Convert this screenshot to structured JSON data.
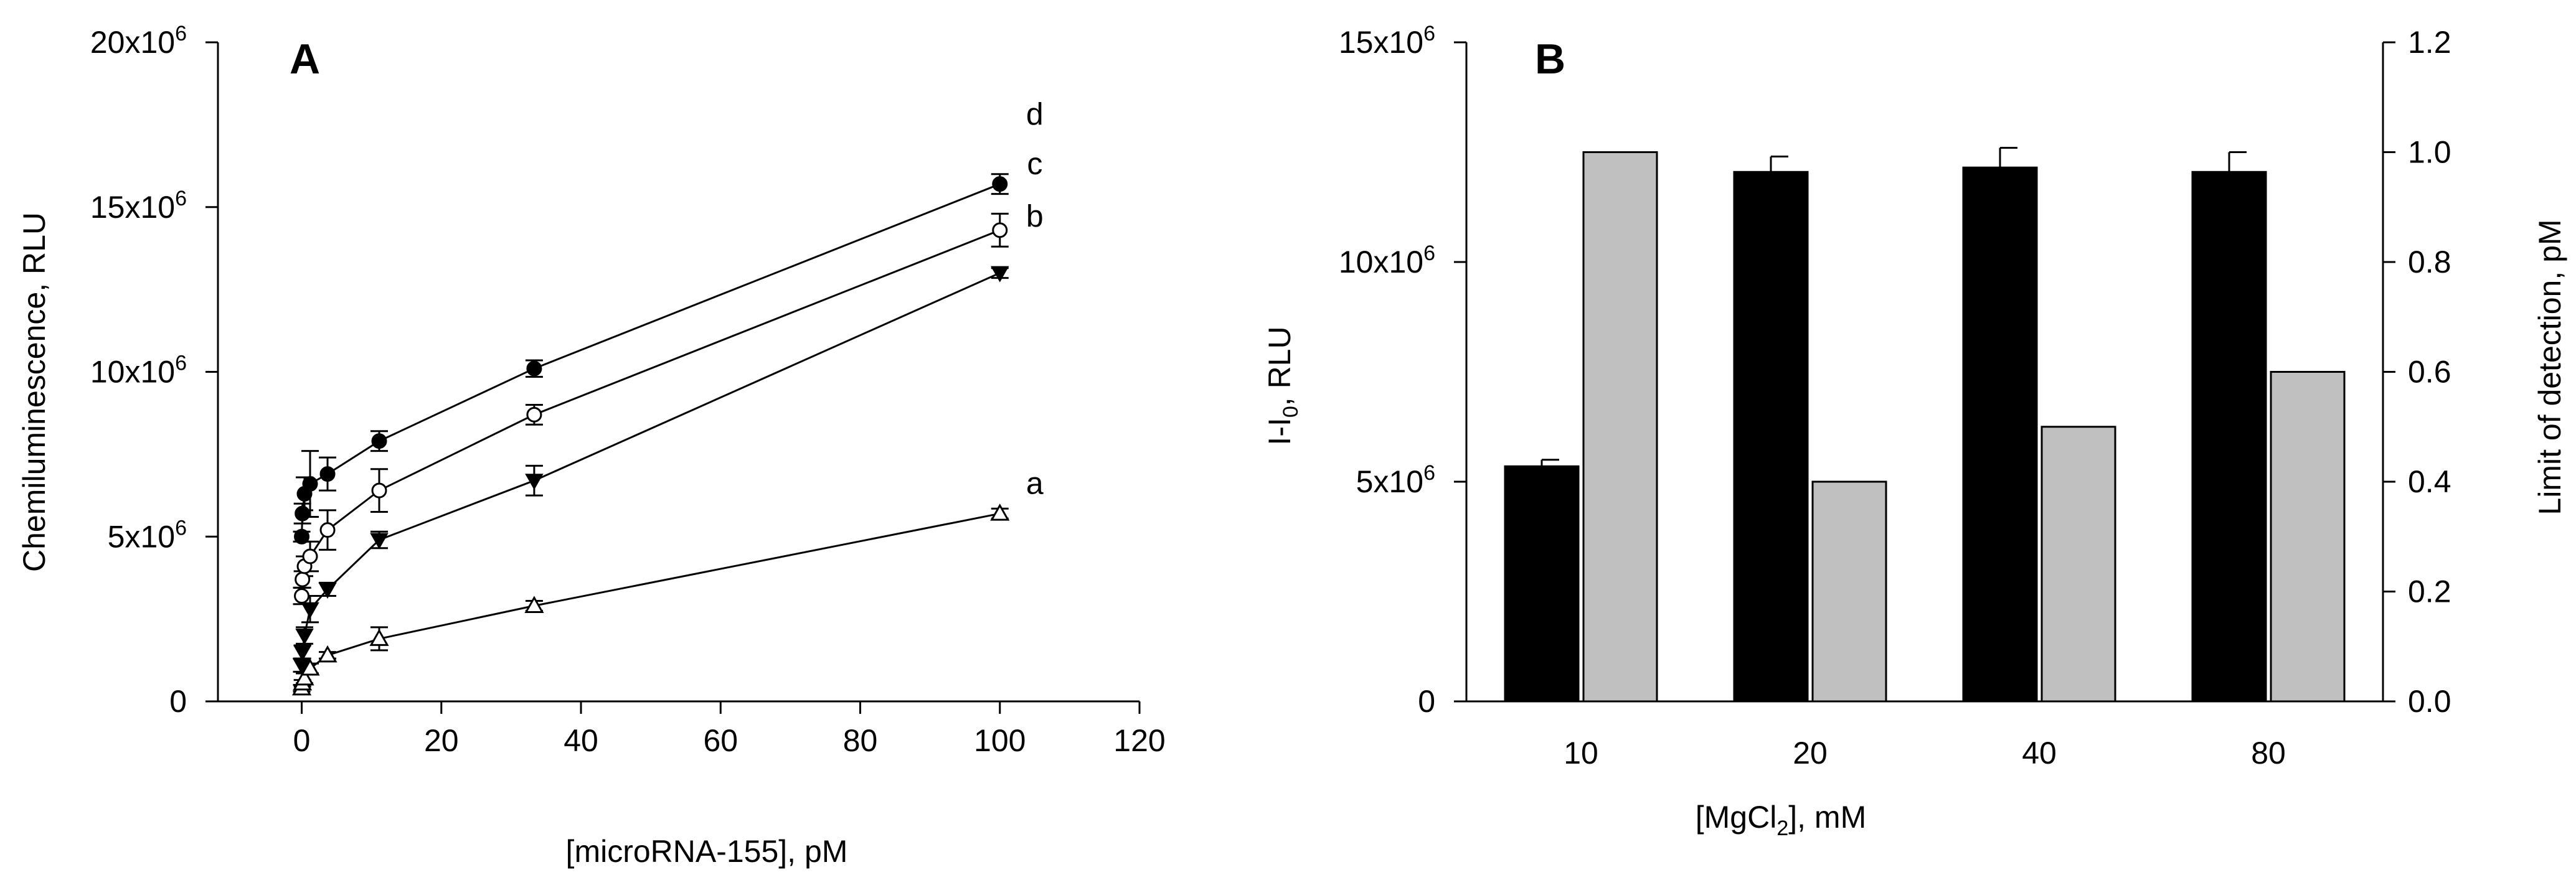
{
  "chart_data": [
    {
      "panel": "A",
      "type": "scatter",
      "title": "",
      "xlabel": "[microRNA-155], pM",
      "ylabel": "Chemiluminescence, RLU",
      "xlim": [
        -12,
        120
      ],
      "ylim": [
        0,
        20000000
      ],
      "xticks": [
        0,
        20,
        40,
        60,
        80,
        100,
        120
      ],
      "xtick_labels": [
        "0",
        "20",
        "40",
        "60",
        "80",
        "100",
        "120"
      ],
      "yticks": [
        0,
        5000000,
        10000000,
        15000000,
        20000000
      ],
      "ytick_labels": [
        {
          "base": "0",
          "exp": ""
        },
        {
          "base": "5x10",
          "exp": "6"
        },
        {
          "base": "10x10",
          "exp": "6"
        },
        {
          "base": "15x10",
          "exp": "6"
        },
        {
          "base": "20x10",
          "exp": "6"
        }
      ],
      "series": [
        {
          "name": "d",
          "marker": "filled-circle",
          "x": [
            0,
            0.1,
            0.4,
            1.2,
            3.7,
            11.1,
            33.3,
            100
          ],
          "y": [
            5000000,
            5700000,
            6300000,
            6600000,
            6900000,
            7900000,
            10100000,
            15700000
          ],
          "err": [
            150000,
            300000,
            500000,
            1000000,
            500000,
            300000,
            250000,
            300000
          ]
        },
        {
          "name": "c",
          "marker": "open-circle",
          "x": [
            0,
            0.1,
            0.4,
            1.2,
            3.7,
            11.1,
            33.3,
            100
          ],
          "y": [
            3200000,
            3700000,
            4100000,
            4400000,
            5200000,
            6400000,
            8700000,
            14300000
          ],
          "err": [
            250000,
            250000,
            300000,
            450000,
            600000,
            650000,
            300000,
            500000
          ]
        },
        {
          "name": "b",
          "marker": "filled-triangle-down",
          "x": [
            0,
            0.1,
            0.4,
            1.2,
            3.7,
            11.1,
            33.3,
            100
          ],
          "y": [
            1100000,
            1500000,
            2000000,
            2800000,
            3400000,
            4900000,
            6700000,
            13000000
          ],
          "err": [
            200000,
            200000,
            250000,
            400000,
            200000,
            250000,
            450000,
            150000
          ]
        },
        {
          "name": "a",
          "marker": "open-triangle-up",
          "x": [
            0,
            0.1,
            0.4,
            1.2,
            3.7,
            11.1,
            33.3,
            100
          ],
          "y": [
            400000,
            550000,
            700000,
            1000000,
            1400000,
            1900000,
            2900000,
            5700000
          ],
          "err": [
            100000,
            100000,
            150000,
            150000,
            100000,
            350000,
            150000,
            150000
          ]
        }
      ],
      "series_labels": [
        {
          "text": "d",
          "x": 105,
          "y": 17800000
        },
        {
          "text": "c",
          "x": 105,
          "y": 16300000
        },
        {
          "text": "b",
          "x": 105,
          "y": 14700000
        },
        {
          "text": "a",
          "x": 105,
          "y": 6600000
        }
      ]
    },
    {
      "panel": "B",
      "type": "bar",
      "title": "",
      "xlabel_base": "[MgCl",
      "xlabel_sub": "2",
      "xlabel_tail": "], mM",
      "ylabel_left_base": "I-I",
      "ylabel_left_sub": "0",
      "ylabel_left_tail": ", RLU",
      "ylabel_right": "Limit of detection, pM",
      "categories": [
        "10",
        "20",
        "40",
        "80"
      ],
      "ylim_left": [
        0,
        15000000
      ],
      "ylim_right": [
        0,
        1.2
      ],
      "left_ticks": [
        {
          "base": "0",
          "exp": ""
        },
        {
          "base": "5x10",
          "exp": "6"
        },
        {
          "base": "10x10",
          "exp": "6"
        },
        {
          "base": "15x10",
          "exp": "6"
        }
      ],
      "left_tick_values": [
        0,
        5000000,
        10000000,
        15000000
      ],
      "right_ticks": [
        "0.0",
        "0.2",
        "0.4",
        "0.6",
        "0.8",
        "1.0",
        "1.2"
      ],
      "right_tick_values": [
        0,
        0.2,
        0.4,
        0.6,
        0.8,
        1.0,
        1.2
      ],
      "series": [
        {
          "name": "I-I0 (RLU)",
          "axis": "left",
          "color": "#000000",
          "values": [
            5350000,
            12050000,
            12150000,
            12050000
          ],
          "err": [
            150000,
            350000,
            450000,
            450000
          ]
        },
        {
          "name": "Limit of detection (pM)",
          "axis": "right",
          "color": "#c0c0c0",
          "values": [
            1.0,
            0.4,
            0.5,
            0.6
          ]
        }
      ]
    }
  ],
  "panel_labels": {
    "a": "A",
    "b": "B"
  }
}
